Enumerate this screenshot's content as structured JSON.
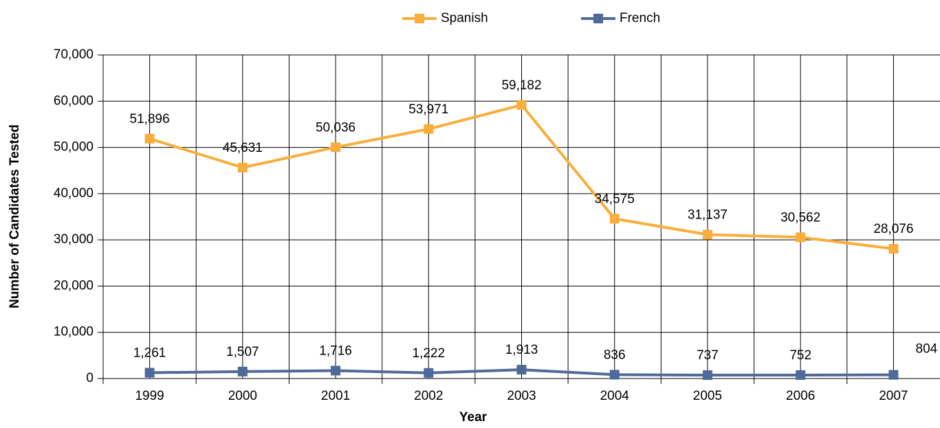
{
  "chart_data": {
    "type": "line",
    "x_label": "Year",
    "y_label": "Number of Candidates Tested",
    "categories": [
      "1999",
      "2000",
      "2001",
      "2002",
      "2003",
      "2004",
      "2005",
      "2006",
      "2007"
    ],
    "series": [
      {
        "name": "Spanish",
        "color": "#f9ae3b",
        "values": [
          51896,
          45631,
          50036,
          53971,
          59182,
          34575,
          31137,
          30562,
          28076
        ],
        "value_labels": [
          "51,896",
          "45,631",
          "50,036",
          "53,971",
          "59,182",
          "34,575",
          "31,137",
          "30,562",
          "28,076"
        ]
      },
      {
        "name": "French",
        "color": "#4f6a98",
        "values": [
          1261,
          1507,
          1716,
          1222,
          1913,
          836,
          737,
          752,
          804
        ],
        "value_labels": [
          "1,261",
          "1,507",
          "1,716",
          "1,222",
          "1,913",
          "836",
          "737",
          "752",
          "804"
        ]
      }
    ],
    "ylim": [
      0,
      70000
    ],
    "yticks": [
      0,
      {
        "value": 10000,
        "label": "10,000"
      },
      {
        "value": 20000,
        "label": "20,000"
      },
      {
        "value": 30000,
        "label": "30,000"
      },
      {
        "value": 40000,
        "label": "40,000"
      },
      {
        "value": 50000,
        "label": "50,000"
      },
      {
        "value": 60000,
        "label": "60,000"
      },
      {
        "value": 70000,
        "label": "70,000"
      }
    ],
    "grid": true,
    "legend": "top"
  }
}
